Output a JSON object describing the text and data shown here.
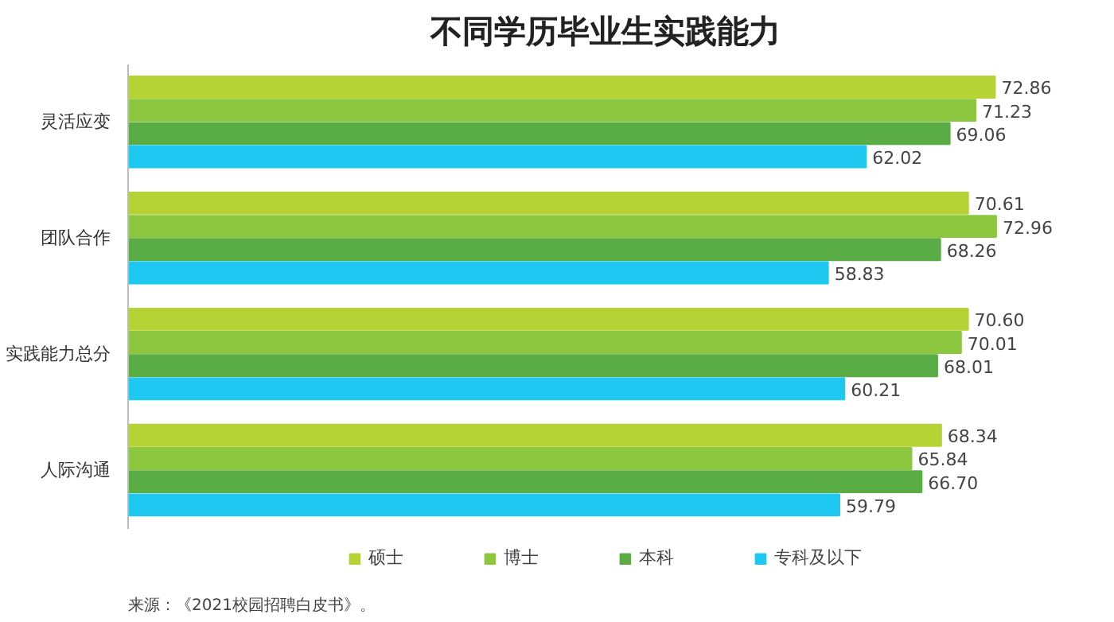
{
  "chart_data": {
    "type": "bar",
    "orientation": "horizontal",
    "title": "不同学历毕业生实践能力",
    "categories": [
      "灵活应变",
      "团队合作",
      "实践能力总分",
      "人际沟通"
    ],
    "series": [
      {
        "name": "硕士",
        "color": "#b5d334",
        "values": [
          72.86,
          70.61,
          70.6,
          68.34
        ],
        "value_labels": [
          "72.86",
          "70.61",
          "70.60",
          "68.34"
        ]
      },
      {
        "name": "博士",
        "color": "#8dc63f",
        "values": [
          71.23,
          72.96,
          70.01,
          65.84
        ],
        "value_labels": [
          "71.23",
          "72.96",
          "70.01",
          "65.84"
        ]
      },
      {
        "name": "本科",
        "color": "#5aac44",
        "values": [
          69.06,
          68.26,
          68.01,
          66.7
        ],
        "value_labels": [
          "69.06",
          "68.26",
          "68.01",
          "66.70"
        ]
      },
      {
        "name": "专科及以下",
        "color": "#1fc8f0",
        "values": [
          62.02,
          58.83,
          60.21,
          59.79
        ],
        "value_labels": [
          "62.02",
          "58.83",
          "60.21",
          "59.79"
        ]
      }
    ],
    "legend": "bottom",
    "tick_labels": "y",
    "annotations": [
      "来源：《2021校园招聘白皮书》。"
    ]
  }
}
